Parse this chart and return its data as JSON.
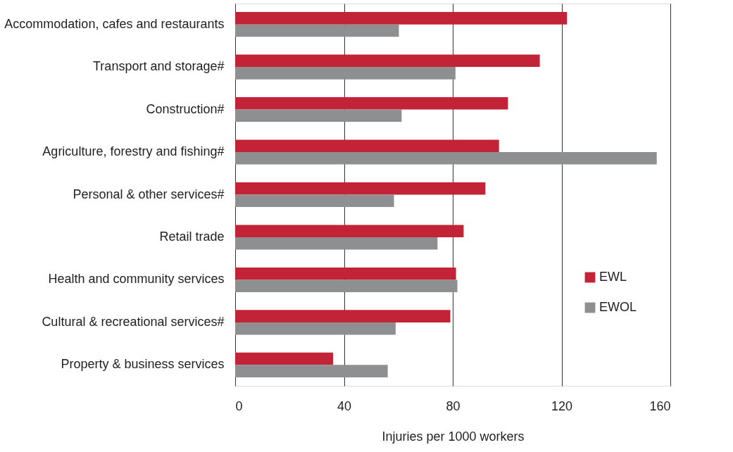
{
  "chart_data": {
    "type": "bar",
    "orientation": "horizontal",
    "xlabel": "Injuries per 1000 workers",
    "categories": [
      "Accommodation, cafes and restaurants",
      "Transport and storage#",
      "Construction#",
      "Agriculture, forestry and fishing#",
      "Personal & other services#",
      "Retail trade",
      "Health and community services",
      "Cultural & recreational services#",
      "Property & business services"
    ],
    "series": [
      {
        "name": "EWL",
        "color": "#c32336",
        "values": [
          122,
          112,
          100.3,
          97,
          92,
          84,
          81.2,
          79.1,
          36
        ]
      },
      {
        "name": "EWOL",
        "color": "#8e8f91",
        "values": [
          60.2,
          81,
          61.2,
          155,
          58.4,
          74.4,
          81.7,
          59,
          56.1
        ]
      }
    ],
    "xlim": [
      0,
      160
    ],
    "xticks": [
      0,
      40,
      80,
      120,
      160
    ],
    "grid": "x",
    "legend": "right"
  }
}
